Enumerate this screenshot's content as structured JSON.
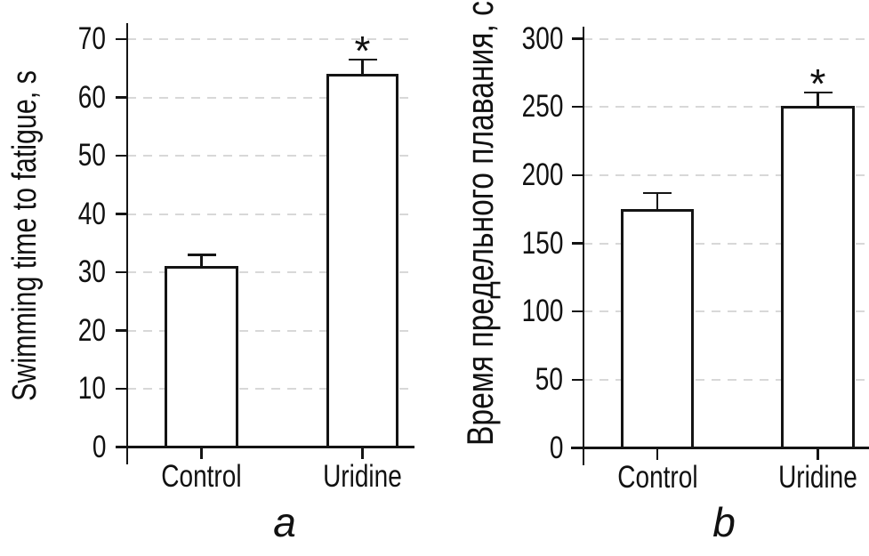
{
  "colors": {
    "axis": "#141414",
    "text": "#111111",
    "gridline": "#d8d8d8",
    "bar_fill": "#ffffff",
    "background": "#ffffff"
  },
  "chart_data": [
    {
      "type": "bar",
      "panel_label": "a",
      "title": "",
      "ylabel": "Swimming time to fatigue, s",
      "xlabel": "",
      "categories": [
        "Control",
        "Uridine"
      ],
      "values": [
        31,
        64
      ],
      "errors": [
        2,
        2.5
      ],
      "significance": [
        "",
        "*"
      ],
      "ylim": [
        0,
        70
      ],
      "yticks": [
        0,
        10,
        20,
        30,
        40,
        50,
        60,
        70
      ],
      "grid": "dashed-horizontal",
      "legend": "none",
      "bar_style": "white fill, black outline, error bars with caps"
    },
    {
      "type": "bar",
      "panel_label": "b",
      "title": "",
      "ylabel": "Время предельного плавания, с",
      "xlabel": "",
      "categories": [
        "Control",
        "Uridine"
      ],
      "values": [
        175,
        251
      ],
      "errors": [
        12,
        9.5
      ],
      "significance": [
        "",
        "*"
      ],
      "ylim": [
        0,
        300
      ],
      "yticks": [
        0,
        50,
        100,
        150,
        200,
        250,
        300
      ],
      "grid": "dashed-horizontal",
      "legend": "none",
      "bar_style": "white fill, black outline, error bars with caps"
    }
  ]
}
